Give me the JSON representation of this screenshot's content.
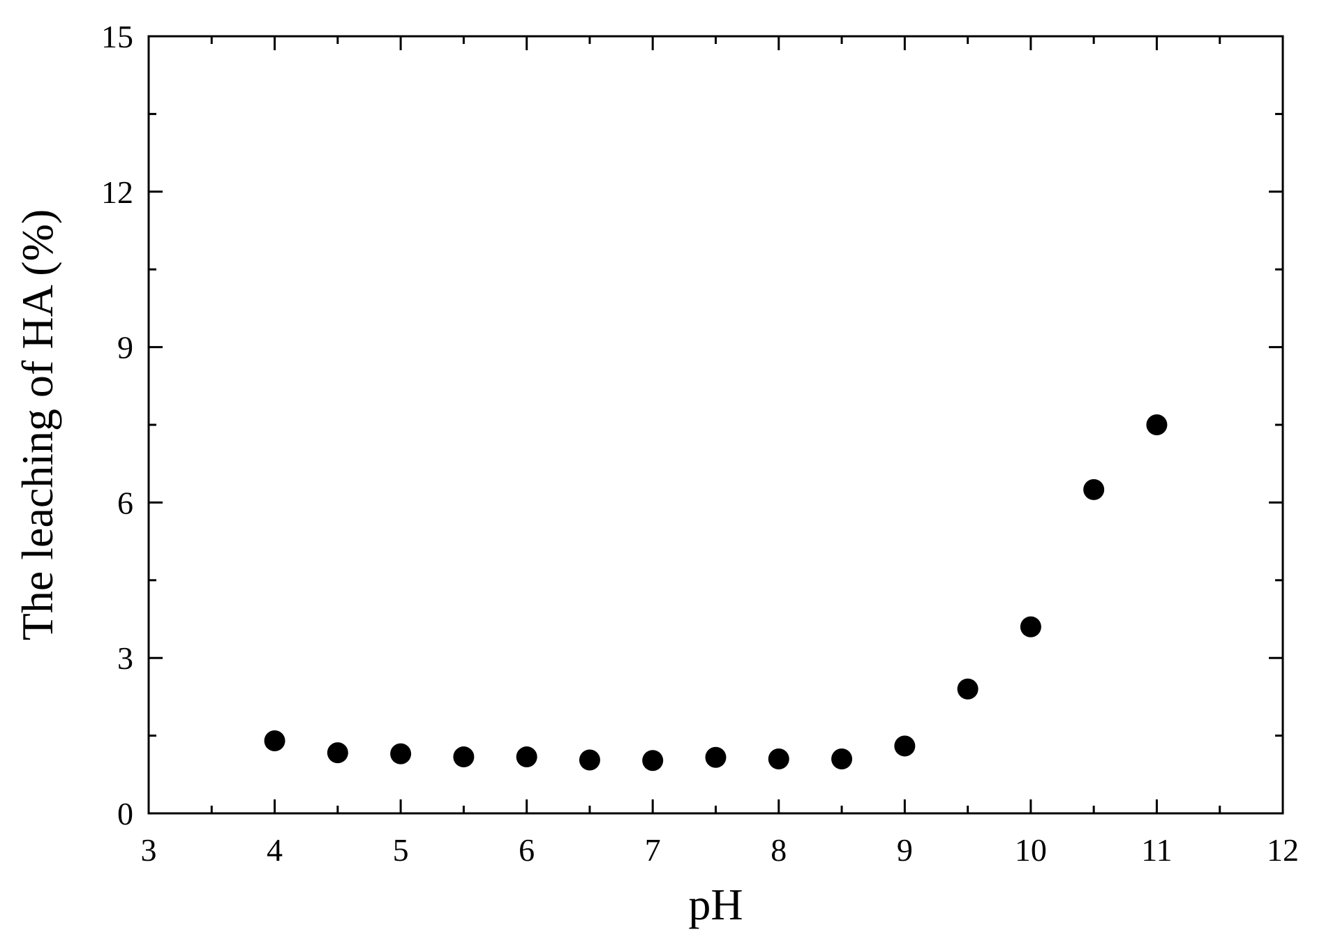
{
  "chart_data": {
    "type": "scatter",
    "title": "",
    "xlabel": "pH",
    "ylabel": "The leaching of HA (%)",
    "xlim": [
      3,
      12
    ],
    "ylim": [
      0,
      15
    ],
    "x_ticks": [
      3,
      4,
      5,
      6,
      7,
      8,
      9,
      10,
      11,
      12
    ],
    "y_ticks": [
      0,
      3,
      6,
      9,
      12,
      15
    ],
    "x_tick_labels": [
      "3",
      "4",
      "5",
      "6",
      "7",
      "8",
      "9",
      "10",
      "11",
      "12"
    ],
    "y_tick_labels": [
      "0",
      "3",
      "6",
      "9",
      "12",
      "15"
    ],
    "grid": false,
    "marker_color": "#000000",
    "series": [
      {
        "x": [
          4,
          4.5,
          5,
          5.5,
          6,
          6.5,
          7,
          7.5,
          8,
          8.5,
          9,
          9.5,
          10,
          10.5,
          11
        ],
        "y": [
          1.4,
          1.17,
          1.15,
          1.09,
          1.09,
          1.03,
          1.02,
          1.08,
          1.05,
          1.05,
          1.3,
          2.4,
          3.6,
          6.25,
          7.5
        ]
      }
    ]
  }
}
